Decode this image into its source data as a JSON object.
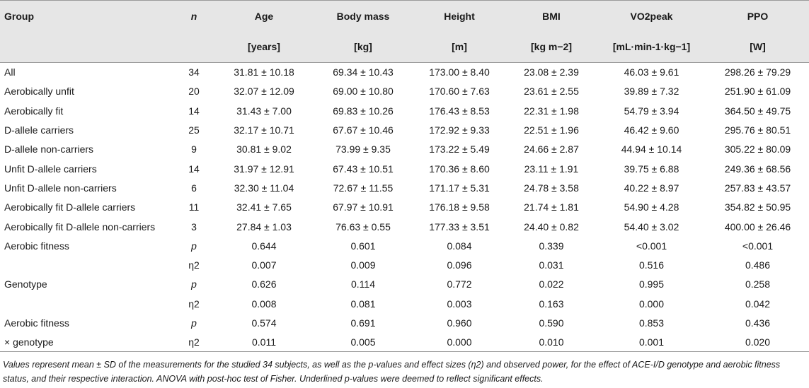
{
  "header": {
    "group": "Group",
    "n": "n",
    "age": "Age",
    "body_mass": "Body mass",
    "height": "Height",
    "bmi": "BMI",
    "vo2peak": "VO2peak",
    "ppo": "PPO"
  },
  "units": {
    "age": "[years]",
    "body_mass": "[kg]",
    "height": "[m]",
    "bmi": "[kg m−2]",
    "vo2peak": "[mL·min-1·kg−1]",
    "ppo": "[W]"
  },
  "rows": [
    {
      "group": "All",
      "n": "34",
      "age": "31.81 ± 10.18",
      "body_mass": "69.34 ± 10.43",
      "height": "173.00 ± 8.40",
      "bmi": "23.08 ± 2.39",
      "vo2peak": "46.03 ± 9.61",
      "ppo": "298.26 ± 79.29"
    },
    {
      "group": "Aerobically unfit",
      "n": "20",
      "age": "32.07 ± 12.09",
      "body_mass": "69.00 ± 10.80",
      "height": "170.60 ± 7.63",
      "bmi": "23.61 ± 2.55",
      "vo2peak": "39.89 ± 7.32",
      "ppo": "251.90 ± 61.09"
    },
    {
      "group": "Aerobically fit",
      "n": "14",
      "age": "31.43 ± 7.00",
      "body_mass": "69.83 ± 10.26",
      "height": "176.43 ± 8.53",
      "bmi": "22.31 ± 1.98",
      "vo2peak": "54.79 ± 3.94",
      "ppo": "364.50 ± 49.75"
    },
    {
      "group": "D-allele carriers",
      "n": "25",
      "age": "32.17 ± 10.71",
      "body_mass": "67.67 ± 10.46",
      "height": "172.92 ± 9.33",
      "bmi": "22.51 ± 1.96",
      "vo2peak": "46.42 ± 9.60",
      "ppo": "295.76 ± 80.51"
    },
    {
      "group": "D-allele non-carriers",
      "n": "9",
      "age": "30.81 ± 9.02",
      "body_mass": "73.99 ± 9.35",
      "height": "173.22 ± 5.49",
      "bmi": "24.66 ± 2.87",
      "vo2peak": "44.94 ± 10.14",
      "ppo": "305.22 ± 80.09"
    },
    {
      "group": "Unfit D-allele carriers",
      "n": "14",
      "age": "31.97 ± 12.91",
      "body_mass": "67.43 ± 10.51",
      "height": "170.36 ± 8.60",
      "bmi": "23.11 ± 1.91",
      "vo2peak": "39.75 ± 6.88",
      "ppo": "249.36 ± 68.56"
    },
    {
      "group": "Unfit D-allele non-carriers",
      "n": "6",
      "age": "32.30 ± 11.04",
      "body_mass": "72.67 ± 11.55",
      "height": "171.17 ± 5.31",
      "bmi": "24.78 ± 3.58",
      "vo2peak": "40.22 ± 8.97",
      "ppo": "257.83 ± 43.57"
    },
    {
      "group": "Aerobically fit D-allele carriers",
      "n": "11",
      "age": "32.41 ± 7.65",
      "body_mass": "67.97 ± 10.91",
      "height": "176.18 ± 9.58",
      "bmi": "21.74 ± 1.81",
      "vo2peak": "54.90 ± 4.28",
      "ppo": "354.82 ± 50.95"
    },
    {
      "group": "Aerobically fit D-allele non-carriers",
      "n": "3",
      "age": "27.84 ± 1.03",
      "body_mass": "76.63 ± 0.55",
      "height": "177.33 ± 3.51",
      "bmi": "24.40 ± 0.82",
      "vo2peak": "54.40 ± 3.02",
      "ppo": "400.00 ± 26.46"
    }
  ],
  "stats": [
    {
      "group": "Aerobic fitness",
      "n": "p",
      "age": "0.644",
      "body_mass": "0.601",
      "height": "0.084",
      "bmi": "0.339",
      "vo2peak": "<0.001",
      "ppo": "<0.001"
    },
    {
      "group": "",
      "n": "η2",
      "age": "0.007",
      "body_mass": "0.009",
      "height": "0.096",
      "bmi": "0.031",
      "vo2peak": "0.516",
      "ppo": "0.486"
    },
    {
      "group": "Genotype",
      "n": "p",
      "age": "0.626",
      "body_mass": "0.114",
      "height": "0.772",
      "bmi": "0.022",
      "vo2peak": "0.995",
      "ppo": "0.258"
    },
    {
      "group": "",
      "n": "η2",
      "age": "0.008",
      "body_mass": "0.081",
      "height": "0.003",
      "bmi": "0.163",
      "vo2peak": "0.000",
      "ppo": "0.042"
    },
    {
      "group": "Aerobic fitness",
      "n": "p",
      "age": "0.574",
      "body_mass": "0.691",
      "height": "0.960",
      "bmi": "0.590",
      "vo2peak": "0.853",
      "ppo": "0.436"
    },
    {
      "group": "× genotype",
      "n": "η2",
      "age": "0.011",
      "body_mass": "0.005",
      "height": "0.000",
      "bmi": "0.010",
      "vo2peak": "0.001",
      "ppo": "0.020"
    }
  ],
  "footnote": "Values represent mean ± SD of the measurements for the studied 34 subjects, as well as the p-values and effect sizes (η2) and observed power, for the effect of ACE-I/D genotype and aerobic fitness status, and their respective interaction. ANOVA with post-hoc test of Fisher. Underlined p-values were deemed to reflect significant effects."
}
